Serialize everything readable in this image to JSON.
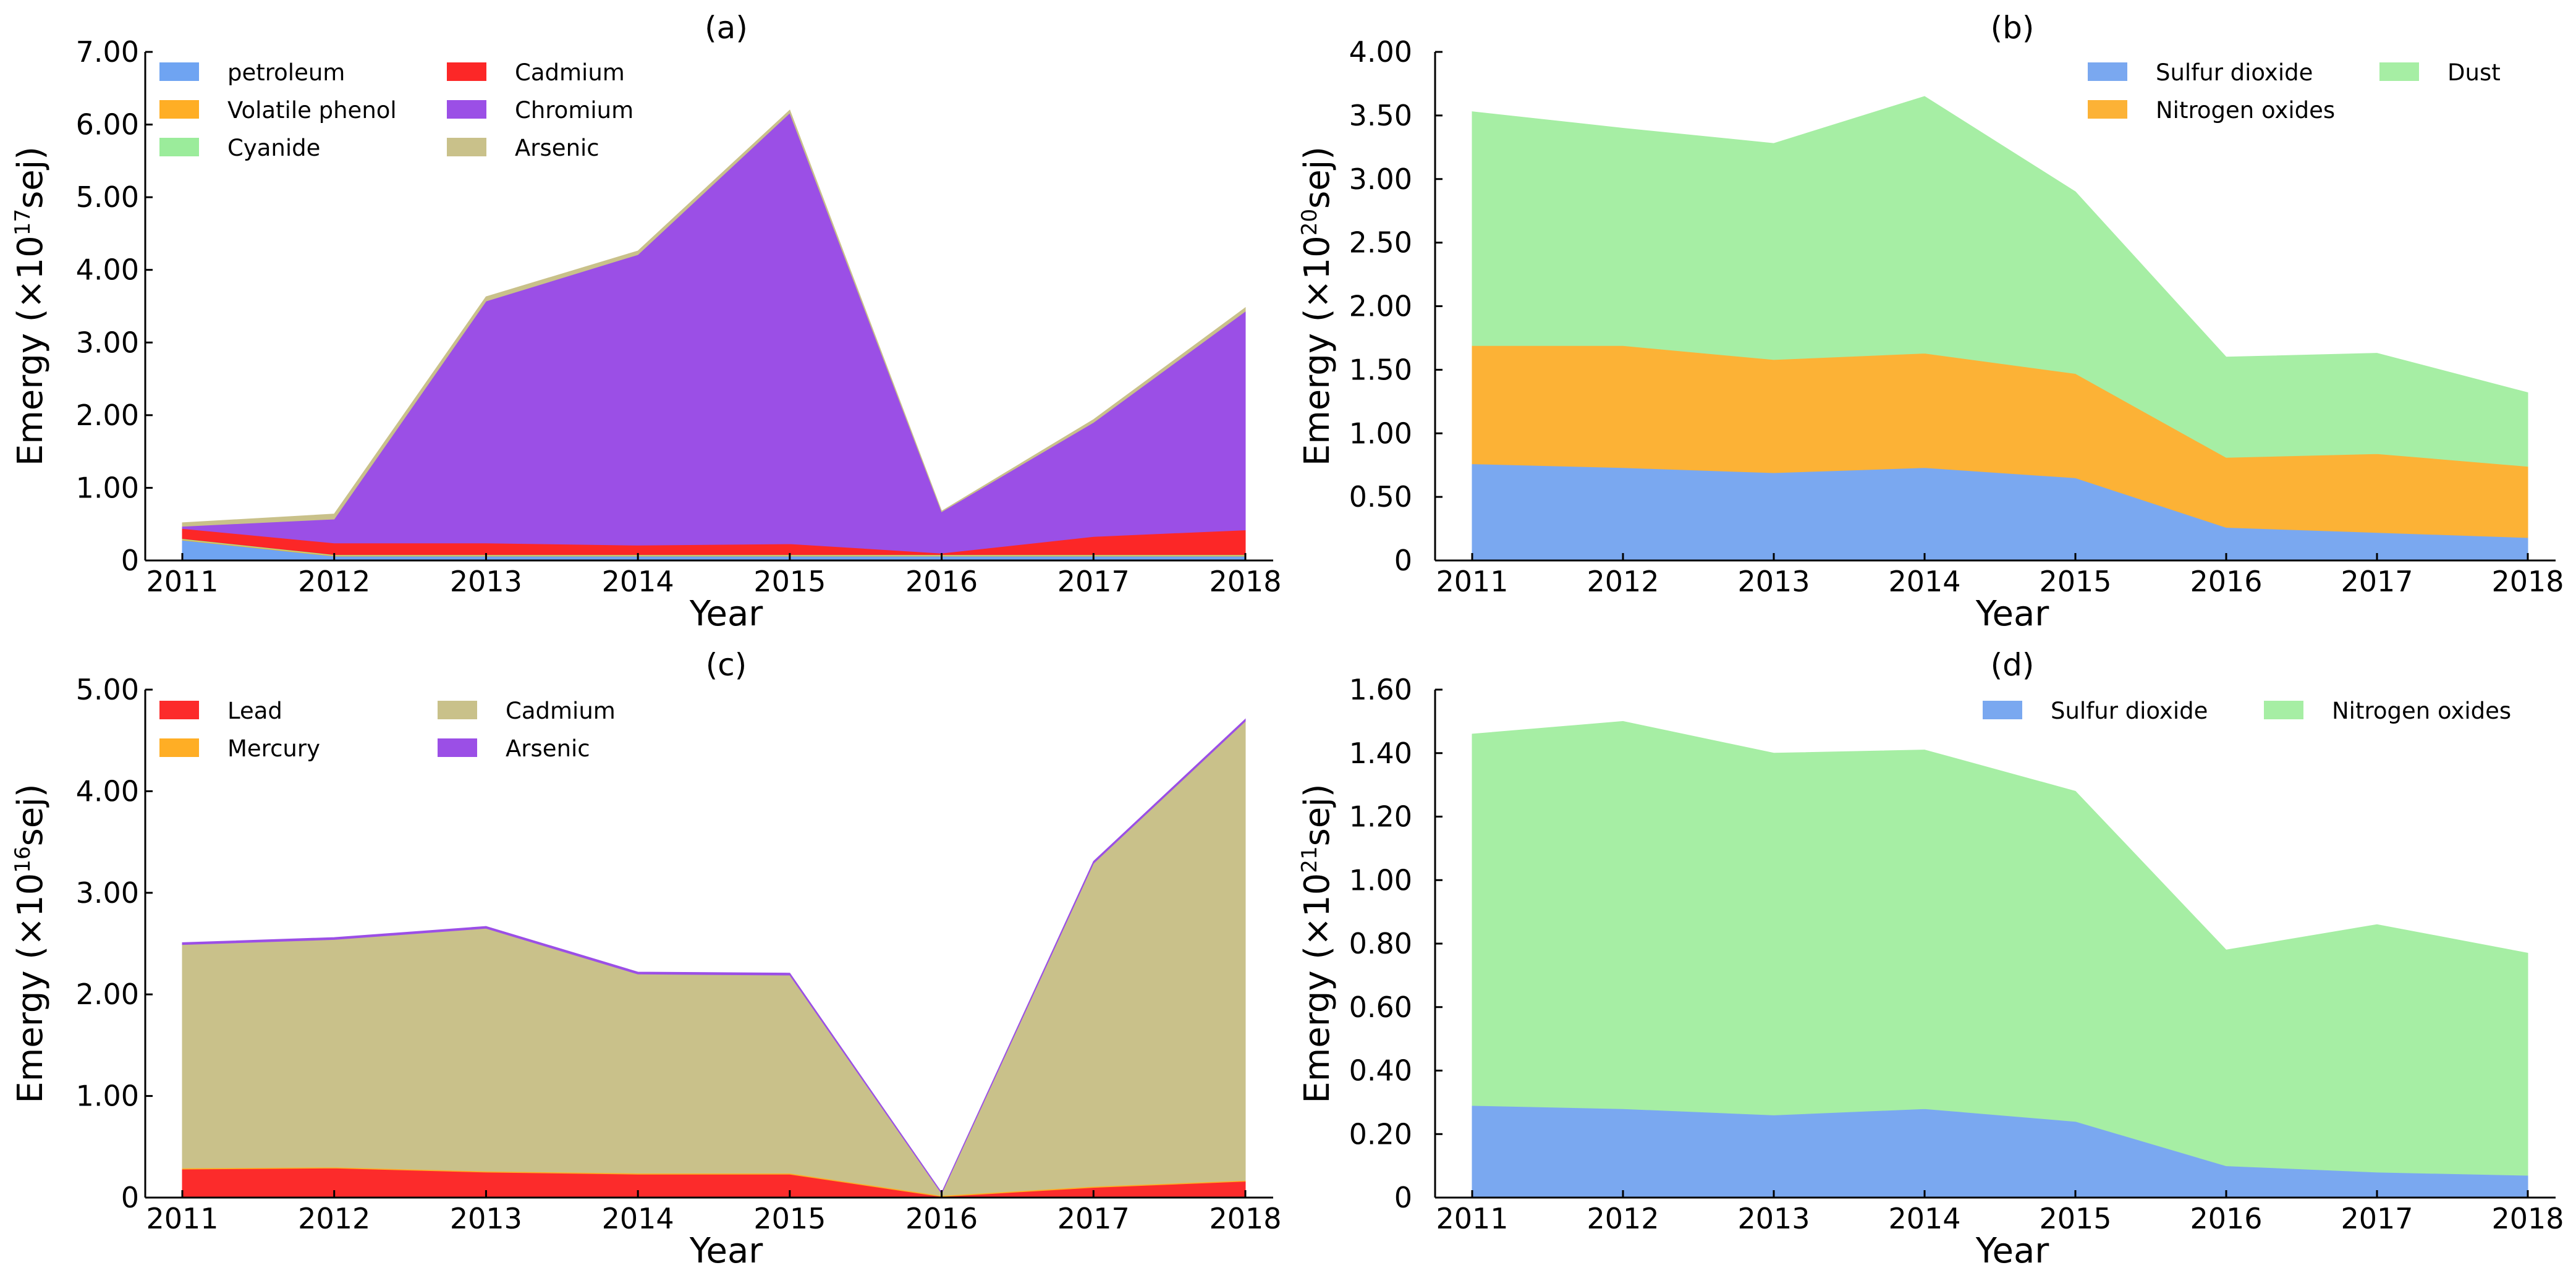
{
  "figure": {
    "chart_data": [
      {
        "type": "area",
        "stacked": true,
        "title": "(a)",
        "xlabel": "Year",
        "ylabel_prefix": "Emergy (×10",
        "ylabel_exp": "17",
        "ylabel_suffix": "sej)",
        "ylim": [
          0,
          7.0
        ],
        "yticks": [
          0,
          1.0,
          2.0,
          3.0,
          4.0,
          5.0,
          6.0,
          7.0
        ],
        "ytick_labels": [
          "0",
          "1.00",
          "2.00",
          "3.00",
          "4.00",
          "5.00",
          "6.00",
          "7.00"
        ],
        "categories": [
          "2011",
          "2012",
          "2013",
          "2014",
          "2015",
          "2016",
          "2017",
          "2018"
        ],
        "legend_position": "top-left",
        "legend_columns": 2,
        "series": [
          {
            "name": "petroleum",
            "color": "#6fa4f2",
            "values": [
              0.28,
              0.06,
              0.06,
              0.06,
              0.06,
              0.06,
              0.06,
              0.06
            ]
          },
          {
            "name": "Volatile phenol",
            "color": "#ffae25",
            "values": [
              0.01,
              0.01,
              0.01,
              0.01,
              0.01,
              0.01,
              0.01,
              0.01
            ]
          },
          {
            "name": "Cyanide",
            "color": "#9bec9b",
            "values": [
              0.01,
              0.01,
              0.01,
              0.01,
              0.01,
              0.01,
              0.01,
              0.01
            ]
          },
          {
            "name": "Cadmium",
            "color": "#fc2727",
            "values": [
              0.14,
              0.16,
              0.16,
              0.13,
              0.15,
              0.02,
              0.25,
              0.34
            ]
          },
          {
            "name": "Chromium",
            "color": "#9b4fe6",
            "values": [
              0.03,
              0.33,
              3.33,
              4.0,
              5.93,
              0.57,
              1.57,
              3.01
            ]
          },
          {
            "name": "Arsenic",
            "color": "#c9c18a",
            "values": [
              0.05,
              0.07,
              0.06,
              0.05,
              0.04,
              0.01,
              0.04,
              0.05
            ]
          }
        ]
      },
      {
        "type": "area",
        "stacked": true,
        "title": "(b)",
        "xlabel": "Year",
        "ylabel_prefix": "Emergy (×10",
        "ylabel_exp": "20",
        "ylabel_suffix": "sej)",
        "ylim": [
          0,
          4.0
        ],
        "yticks": [
          0,
          0.5,
          1.0,
          1.5,
          2.0,
          2.5,
          3.0,
          3.5,
          4.0
        ],
        "ytick_labels": [
          "0",
          "0.50",
          "1.00",
          "1.50",
          "2.00",
          "2.50",
          "3.00",
          "3.50",
          "4.00"
        ],
        "categories": [
          "2011",
          "2012",
          "2013",
          "2014",
          "2015",
          "2016",
          "2017",
          "2018"
        ],
        "legend_position": "top-right",
        "legend_columns": 2,
        "series": [
          {
            "name": "Sulfur dioxide",
            "color": "#7aa8f0",
            "values": [
              0.76,
              0.73,
              0.69,
              0.73,
              0.65,
              0.26,
              0.22,
              0.18
            ]
          },
          {
            "name": "Nitrogen oxides",
            "color": "#fcb236",
            "values": [
              0.93,
              0.96,
              0.89,
              0.9,
              0.82,
              0.55,
              0.62,
              0.56
            ]
          },
          {
            "name": "Dust",
            "color": "#a6eea4",
            "values": [
              1.84,
              1.71,
              1.7,
              2.02,
              1.43,
              0.79,
              0.79,
              0.58
            ]
          }
        ]
      },
      {
        "type": "area",
        "stacked": true,
        "title": "(c)",
        "xlabel": "Year",
        "ylabel_prefix": "Emergy (×10",
        "ylabel_exp": "16",
        "ylabel_suffix": "sej)",
        "ylim": [
          0,
          5.0
        ],
        "yticks": [
          0,
          1.0,
          2.0,
          3.0,
          4.0,
          5.0
        ],
        "ytick_labels": [
          "0",
          "1.00",
          "2.00",
          "3.00",
          "4.00",
          "5.00"
        ],
        "categories": [
          "2011",
          "2012",
          "2013",
          "2014",
          "2015",
          "2016",
          "2017",
          "2018"
        ],
        "legend_position": "top-left",
        "legend_columns": 2,
        "series": [
          {
            "name": "Lead",
            "color": "#fc2b2b",
            "values": [
              0.28,
              0.29,
              0.25,
              0.23,
              0.23,
              0.01,
              0.1,
              0.16
            ]
          },
          {
            "name": "Mercury",
            "color": "#ffae25",
            "values": [
              0.01,
              0.01,
              0.01,
              0.01,
              0.01,
              0.01,
              0.01,
              0.01
            ]
          },
          {
            "name": "Cadmium",
            "color": "#c9c18a",
            "values": [
              2.2,
              2.24,
              2.39,
              1.96,
              1.95,
              0.02,
              3.18,
              4.52
            ]
          },
          {
            "name": "Arsenic",
            "color": "#9b4fe6",
            "values": [
              0.02,
              0.02,
              0.02,
              0.02,
              0.02,
              0.01,
              0.02,
              0.02
            ]
          }
        ]
      },
      {
        "type": "area",
        "stacked": true,
        "title": "(d)",
        "xlabel": "Year",
        "ylabel_prefix": "Emergy (×10",
        "ylabel_exp": "21",
        "ylabel_suffix": "sej)",
        "ylim": [
          0,
          1.6
        ],
        "yticks": [
          0,
          0.2,
          0.4,
          0.6,
          0.8,
          1.0,
          1.2,
          1.4,
          1.6
        ],
        "ytick_labels": [
          "0",
          "0.20",
          "0.40",
          "0.60",
          "0.80",
          "1.00",
          "1.20",
          "1.40",
          "1.60"
        ],
        "categories": [
          "2011",
          "2012",
          "2013",
          "2014",
          "2015",
          "2016",
          "2017",
          "2018"
        ],
        "legend_position": "top-right",
        "legend_columns": 2,
        "series": [
          {
            "name": "Sulfur dioxide",
            "color": "#7aa8f0",
            "values": [
              0.29,
              0.28,
              0.26,
              0.28,
              0.24,
              0.1,
              0.08,
              0.07
            ]
          },
          {
            "name": "Nitrogen oxides",
            "color": "#a6eea4",
            "values": [
              1.17,
              1.22,
              1.14,
              1.13,
              1.04,
              0.68,
              0.78,
              0.7
            ]
          }
        ]
      }
    ]
  }
}
